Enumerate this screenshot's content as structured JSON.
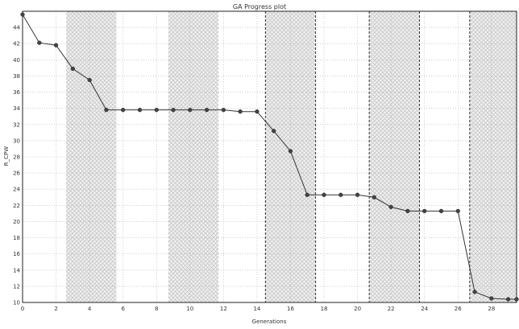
{
  "chart_data": {
    "type": "line",
    "title": "GA Progress plot",
    "xlabel": "Generations",
    "ylabel": "R_CPW",
    "xlim": [
      0,
      29.5
    ],
    "ylim": [
      10,
      46
    ],
    "grid": true,
    "x_ticks": [
      "0",
      "2",
      "4",
      "6",
      "8",
      "10",
      "12",
      "14",
      "16",
      "18",
      "20",
      "22",
      "24",
      "26",
      "28"
    ],
    "y_ticks": [
      "10",
      "12",
      "14",
      "16",
      "18",
      "20",
      "22",
      "24",
      "26",
      "28",
      "30",
      "32",
      "34",
      "36",
      "38",
      "40",
      "42",
      "44"
    ],
    "shaded_x_ranges": [
      [
        2.6,
        5.6
      ],
      [
        8.7,
        11.7
      ],
      [
        14.5,
        17.5
      ],
      [
        20.7,
        23.7
      ],
      [
        26.7,
        29.5
      ]
    ],
    "dashed_x_lines": [
      14.5,
      17.5,
      20.7,
      23.7,
      26.7
    ],
    "series": [
      {
        "x": [
          0,
          1,
          2,
          3,
          4,
          5,
          6,
          7,
          8,
          9,
          10,
          11,
          12,
          13,
          14,
          15,
          16,
          17,
          18,
          19,
          20,
          21,
          22,
          23,
          24,
          25,
          26,
          27,
          28,
          29,
          29.5
        ],
        "y": [
          45.6,
          42.1,
          41.8,
          38.9,
          37.5,
          33.8,
          33.8,
          33.8,
          33.8,
          33.8,
          33.8,
          33.8,
          33.8,
          33.6,
          33.6,
          31.2,
          28.7,
          23.3,
          23.3,
          23.3,
          23.3,
          23.0,
          21.8,
          21.3,
          21.3,
          21.3,
          21.3,
          11.3,
          10.5,
          10.4,
          10.4
        ]
      }
    ],
    "colors": {
      "line": "#333333",
      "marker": "#444444",
      "grid": "#b0b0b0",
      "shade": "#c8c8c8"
    }
  }
}
